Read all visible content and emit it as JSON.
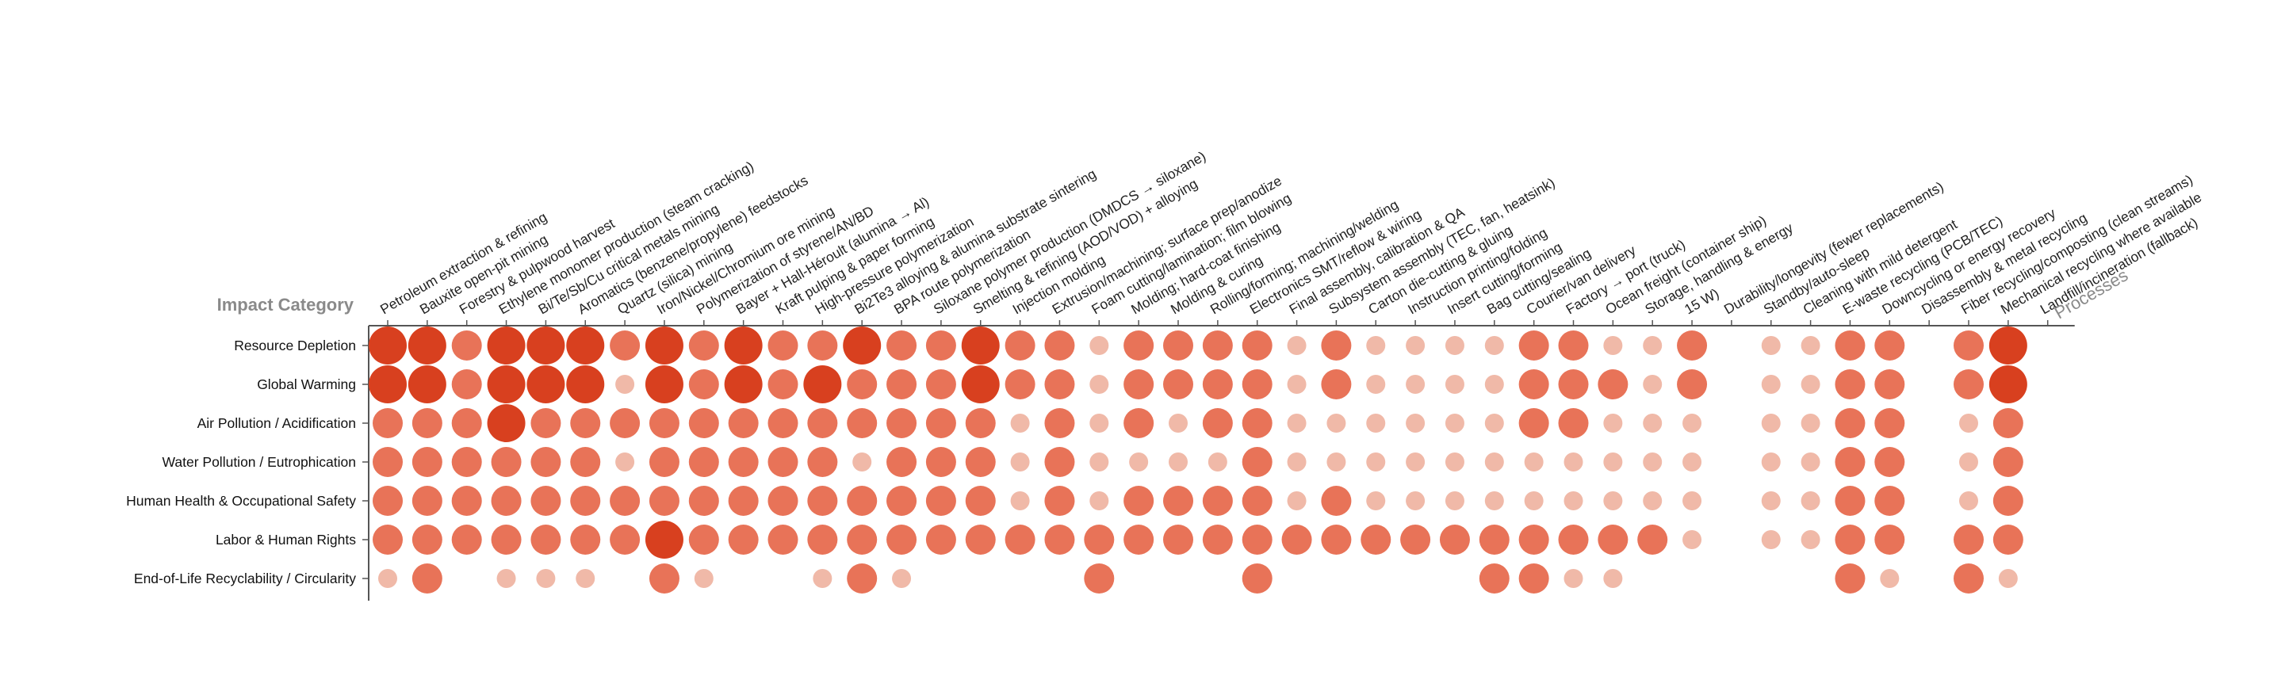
{
  "chart_data": {
    "type": "bubble-matrix",
    "y_axis_title": "Impact Category",
    "x_axis_title": "Processes",
    "color_scale": {
      "low": "#f0b9a8",
      "mid": "#e87358",
      "high": "#d8401f"
    },
    "size_scale": "value 1 = smallest dot, value 5 = largest dot; 0 = no dot",
    "processes": [
      "Petroleum extraction & refining",
      "Bauxite open-pit mining",
      "Forestry & pulpwood harvest",
      "Ethylene monomer production (steam cracking)",
      "Bi/Te/Sb/Cu critical metals mining",
      "Aromatics (benzene/propylene) feedstocks",
      "Quartz (silica) mining",
      "Iron/Nickel/Chromium ore mining",
      "Polymerization of styrene/AN/BD",
      "Bayer + Hall-Héroult (alumina → Al)",
      "Kraft pulping & paper forming",
      "High-pressure polymerization",
      "Bi2Te3 alloying & alumina substrate sintering",
      "BPA route polymerization",
      "Siloxane polymer production (DMDCS → siloxane)",
      "Smelting & refining (AOD/VOD) + alloying",
      "Injection molding",
      "Extrusion/machining; surface prep/anodize",
      "Foam cutting/lamination; film blowing",
      "Molding; hard-coat finishing",
      "Molding & curing",
      "Rolling/forming; machining/welding",
      "Electronics SMT/reflow & wiring",
      "Final assembly, calibration & QA",
      "Subsystem assembly (TEC, fan, heatsink)",
      "Carton die-cutting & gluing",
      "Instruction printing/folding",
      "Insert cutting/forming",
      "Bag cutting/sealing",
      "Courier/van delivery",
      "Factory → port (truck)",
      "Ocean freight (container ship)",
      "Storage, handling & energy",
      "15 W)",
      "Durability/longevity (fewer replacements)",
      "Standby/auto-sleep",
      "Cleaning with mild detergent",
      "E-waste recycling (PCB/TEC)",
      "Downcycling or energy recovery",
      "Disassembly & metal recycling",
      "Fiber recycling/composting (clean streams)",
      "Mechanical recycling where available",
      "Landfill/incineration (fallback)"
    ],
    "categories": [
      "Resource Depletion",
      "Global Warming",
      "Air Pollution / Acidification",
      "Water Pollution / Eutrophication",
      "Human Health & Occupational Safety",
      "Labor & Human Rights",
      "End-of-Life Recyclability / Circularity"
    ],
    "values": [
      [
        5,
        5,
        3,
        5,
        5,
        5,
        3,
        5,
        3,
        5,
        3,
        3,
        5,
        3,
        3,
        5,
        3,
        3,
        1,
        3,
        3,
        3,
        3,
        1,
        3,
        1,
        1,
        1,
        1,
        3,
        3,
        1,
        1,
        3,
        0,
        1,
        1,
        3,
        3,
        0,
        3,
        5,
        0
      ],
      [
        5,
        5,
        3,
        5,
        5,
        5,
        1,
        5,
        3,
        5,
        3,
        5,
        3,
        3,
        3,
        5,
        3,
        3,
        1,
        3,
        3,
        3,
        3,
        1,
        3,
        1,
        1,
        1,
        1,
        3,
        3,
        3,
        1,
        3,
        0,
        1,
        1,
        3,
        3,
        0,
        3,
        5,
        0
      ],
      [
        3,
        3,
        3,
        5,
        3,
        3,
        3,
        3,
        3,
        3,
        3,
        3,
        3,
        3,
        3,
        3,
        1,
        3,
        1,
        3,
        1,
        3,
        3,
        1,
        1,
        1,
        1,
        1,
        1,
        3,
        3,
        1,
        1,
        1,
        0,
        1,
        1,
        3,
        3,
        0,
        1,
        3,
        0
      ],
      [
        3,
        3,
        3,
        3,
        3,
        3,
        1,
        3,
        3,
        3,
        3,
        3,
        1,
        3,
        3,
        3,
        1,
        3,
        1,
        1,
        1,
        1,
        3,
        1,
        1,
        1,
        1,
        1,
        1,
        1,
        1,
        1,
        1,
        1,
        0,
        1,
        1,
        3,
        3,
        0,
        1,
        3,
        0
      ],
      [
        3,
        3,
        3,
        3,
        3,
        3,
        3,
        3,
        3,
        3,
        3,
        3,
        3,
        3,
        3,
        3,
        1,
        3,
        1,
        3,
        3,
        3,
        3,
        1,
        3,
        1,
        1,
        1,
        1,
        1,
        1,
        1,
        1,
        1,
        0,
        1,
        1,
        3,
        3,
        0,
        1,
        3,
        0
      ],
      [
        3,
        3,
        3,
        3,
        3,
        3,
        3,
        5,
        3,
        3,
        3,
        3,
        3,
        3,
        3,
        3,
        3,
        3,
        3,
        3,
        3,
        3,
        3,
        3,
        3,
        3,
        3,
        3,
        3,
        3,
        3,
        3,
        3,
        1,
        0,
        1,
        1,
        3,
        3,
        0,
        3,
        3,
        0
      ],
      [
        1,
        3,
        0,
        1,
        1,
        1,
        0,
        3,
        1,
        0,
        0,
        1,
        3,
        1,
        0,
        0,
        0,
        0,
        3,
        0,
        0,
        0,
        3,
        0,
        0,
        0,
        0,
        0,
        3,
        3,
        1,
        1,
        0,
        0,
        0,
        0,
        0,
        3,
        1,
        0,
        3,
        1,
        0
      ]
    ],
    "legend": "none"
  }
}
